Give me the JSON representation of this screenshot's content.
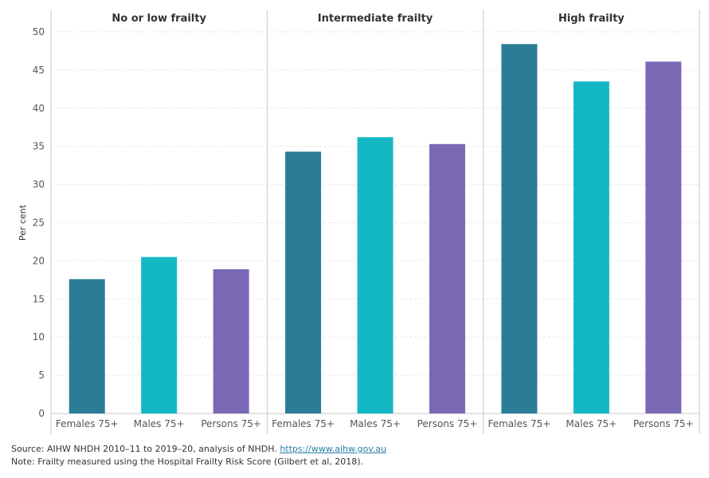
{
  "chart_data": {
    "type": "bar",
    "ylabel": "Per cent",
    "ylim": [
      0,
      50
    ],
    "yticks": [
      0,
      5,
      10,
      15,
      20,
      25,
      30,
      35,
      40,
      45,
      50
    ],
    "grid": true,
    "categories": [
      "Females 75+",
      "Males 75+",
      "Persons 75+"
    ],
    "colors": [
      "#2b7d96",
      "#14b8c4",
      "#7b68b5"
    ],
    "panels": [
      {
        "title": "No or low frailty",
        "values": [
          17.6,
          20.5,
          18.9
        ]
      },
      {
        "title": "Intermediate frailty",
        "values": [
          34.3,
          36.2,
          35.3
        ]
      },
      {
        "title": "High frailty",
        "values": [
          48.4,
          43.5,
          46.1
        ]
      }
    ]
  },
  "footer": {
    "source_text": "Source: AIHW NHDH 2010–11 to 2019–20, analysis of NHDH. ",
    "source_link": "https://www.aihw.gov.au",
    "note": "Note: Frailty measured using the Hospital Frailty Risk Score (Gilbert et al, 2018)."
  }
}
